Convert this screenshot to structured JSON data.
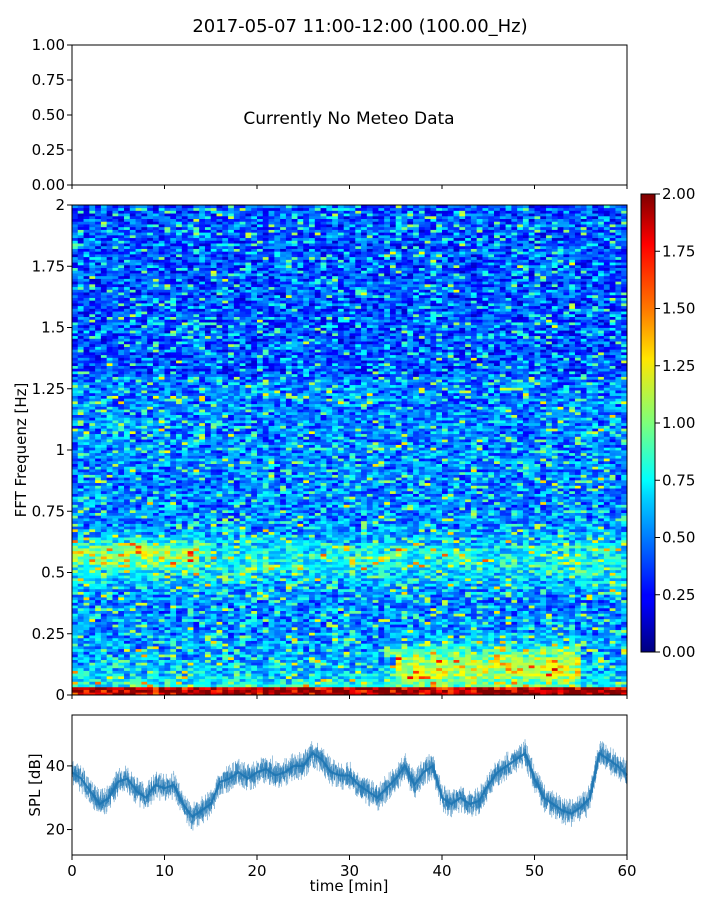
{
  "title": "2017-05-07 11:00-12:00 (100.00_Hz)",
  "meteo_panel": {
    "message": "Currently No Meteo Data",
    "yticks": [
      "0.00",
      "0.25",
      "0.50",
      "0.75",
      "1.00"
    ]
  },
  "chart_data": [
    {
      "type": "text",
      "name": "meteo",
      "ylim": [
        0,
        1
      ],
      "yticks": [
        0,
        0.25,
        0.5,
        0.75,
        1.0
      ],
      "annotation": "Currently No Meteo Data"
    },
    {
      "type": "heatmap",
      "name": "spectrogram",
      "ylabel": "FFT Frequenz [Hz]",
      "xlim": [
        0,
        60
      ],
      "ylim": [
        0,
        2
      ],
      "yticks": [
        "0",
        "0.25",
        "0.5",
        "0.75",
        "1",
        "1.25",
        "1.5",
        "1.75",
        "2"
      ],
      "colormap": "jet",
      "colorbar": {
        "range": [
          0,
          2
        ],
        "ticks": [
          "0.00",
          "0.25",
          "0.50",
          "0.75",
          "1.00",
          "1.25",
          "1.50",
          "1.75",
          "2.00"
        ]
      }
    },
    {
      "type": "line",
      "name": "spl",
      "xlabel": "time [min]",
      "ylabel": "SPL [dB]",
      "xlim": [
        0,
        60
      ],
      "ylim": [
        12,
        56
      ],
      "xticks": [
        0,
        10,
        20,
        30,
        40,
        50,
        60
      ],
      "yticks": [
        20,
        40
      ],
      "color": "#1f77b4",
      "x": [
        0,
        1,
        2,
        3,
        4,
        5,
        6,
        7,
        8,
        9,
        10,
        11,
        12,
        13,
        14,
        15,
        16,
        17,
        18,
        19,
        20,
        21,
        22,
        23,
        24,
        25,
        26,
        27,
        28,
        29,
        30,
        31,
        32,
        33,
        34,
        35,
        36,
        37,
        38,
        39,
        40,
        41,
        42,
        43,
        44,
        45,
        46,
        47,
        48,
        49,
        50,
        51,
        52,
        53,
        54,
        55,
        56,
        57,
        58,
        59,
        60
      ],
      "y": [
        38,
        36,
        32,
        28,
        30,
        35,
        36,
        32,
        30,
        34,
        33,
        34,
        28,
        24,
        26,
        28,
        35,
        36,
        38,
        36,
        38,
        39,
        37,
        38,
        40,
        40,
        44,
        42,
        38,
        37,
        37,
        34,
        32,
        30,
        33,
        36,
        40,
        34,
        38,
        40,
        30,
        28,
        30,
        28,
        29,
        34,
        38,
        40,
        42,
        44,
        36,
        30,
        28,
        26,
        25,
        27,
        30,
        44,
        42,
        40,
        37
      ]
    }
  ]
}
